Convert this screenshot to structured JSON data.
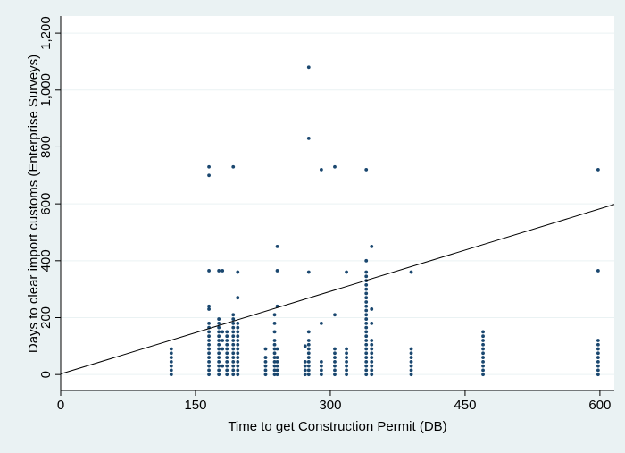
{
  "chart_data": {
    "type": "scatter",
    "xlabel": "Time to get Construction Permit (DB)",
    "ylabel": "Days to clear import customs (Enterprise Surveys)",
    "xlim": [
      0,
      616
    ],
    "ylim": [
      -56,
      1260
    ],
    "xticks": [
      0,
      150,
      300,
      450,
      600
    ],
    "yticks": [
      0,
      200,
      400,
      600,
      800,
      {
        "value": 1000,
        "label": "1,000"
      },
      {
        "value": 1200,
        "label": "1,200"
      }
    ],
    "grid": true,
    "series": [
      {
        "type": "scatter",
        "color": "#1a476f",
        "x": [
          123,
          123,
          123,
          123,
          123,
          123,
          123,
          165,
          165,
          165,
          165,
          165,
          165,
          165,
          165,
          165,
          165,
          165,
          165,
          165,
          165,
          165,
          165,
          165,
          165,
          176,
          176,
          176,
          176,
          176,
          176,
          176,
          176,
          176,
          176,
          176,
          176,
          176,
          176,
          176,
          180,
          180,
          180,
          180,
          180,
          185,
          185,
          185,
          185,
          185,
          185,
          185,
          185,
          185,
          185,
          185,
          192,
          192,
          192,
          192,
          192,
          192,
          192,
          192,
          192,
          192,
          192,
          192,
          192,
          192,
          192,
          192,
          197,
          197,
          197,
          197,
          197,
          197,
          197,
          197,
          197,
          197,
          197,
          197,
          197,
          197,
          197,
          228,
          228,
          228,
          228,
          228,
          228,
          238,
          238,
          238,
          238,
          238,
          238,
          238,
          238,
          238,
          238,
          238,
          238,
          241,
          241,
          241,
          241,
          241,
          241,
          241,
          241,
          241,
          272,
          272,
          272,
          272,
          272,
          276,
          276,
          276,
          276,
          276,
          276,
          276,
          276,
          276,
          276,
          276,
          276,
          276,
          290,
          290,
          290,
          290,
          290,
          290,
          305,
          305,
          305,
          305,
          305,
          305,
          305,
          305,
          305,
          318,
          318,
          318,
          318,
          318,
          318,
          318,
          318,
          340,
          340,
          340,
          340,
          340,
          340,
          340,
          340,
          340,
          340,
          340,
          340,
          340,
          340,
          340,
          340,
          340,
          340,
          340,
          340,
          340,
          340,
          340,
          340,
          340,
          340,
          340,
          346,
          346,
          346,
          346,
          346,
          346,
          346,
          346,
          346,
          346,
          346,
          346,
          390,
          390,
          390,
          390,
          390,
          390,
          390,
          390,
          470,
          470,
          470,
          470,
          470,
          470,
          470,
          470,
          470,
          470,
          470,
          598,
          598,
          598,
          598,
          598,
          598,
          598,
          598,
          598,
          598,
          598
        ],
        "values": [
          0,
          15,
          30,
          45,
          60,
          75,
          90,
          0,
          15,
          30,
          45,
          60,
          75,
          90,
          105,
          120,
          135,
          150,
          165,
          180,
          230,
          240,
          365,
          700,
          730,
          0,
          15,
          30,
          45,
          60,
          75,
          90,
          105,
          120,
          135,
          150,
          165,
          180,
          195,
          365,
          30,
          90,
          120,
          150,
          365,
          0,
          15,
          30,
          45,
          60,
          75,
          90,
          105,
          120,
          135,
          150,
          0,
          15,
          30,
          45,
          60,
          75,
          90,
          105,
          120,
          135,
          150,
          165,
          180,
          195,
          210,
          730,
          0,
          15,
          30,
          45,
          60,
          75,
          90,
          105,
          120,
          135,
          150,
          165,
          180,
          270,
          360,
          0,
          15,
          30,
          45,
          60,
          90,
          0,
          15,
          30,
          45,
          60,
          75,
          90,
          105,
          120,
          150,
          180,
          210,
          0,
          15,
          30,
          45,
          60,
          90,
          240,
          365,
          450,
          0,
          15,
          30,
          45,
          100,
          0,
          15,
          30,
          45,
          60,
          75,
          90,
          105,
          120,
          150,
          360,
          830,
          1080,
          0,
          15,
          30,
          45,
          180,
          720,
          0,
          15,
          30,
          45,
          60,
          75,
          90,
          210,
          730,
          0,
          15,
          30,
          45,
          60,
          75,
          90,
          360,
          0,
          15,
          30,
          45,
          60,
          75,
          90,
          105,
          120,
          135,
          150,
          165,
          180,
          195,
          210,
          225,
          240,
          255,
          270,
          285,
          300,
          315,
          330,
          345,
          360,
          400,
          720,
          0,
          15,
          30,
          45,
          60,
          75,
          90,
          105,
          120,
          180,
          230,
          450,
          0,
          15,
          30,
          45,
          60,
          75,
          90,
          360,
          0,
          15,
          30,
          45,
          60,
          75,
          90,
          105,
          120,
          135,
          150,
          0,
          15,
          30,
          45,
          60,
          75,
          90,
          105,
          120,
          365,
          720
        ]
      },
      {
        "type": "line",
        "color": "#000000",
        "x": [
          0,
          616
        ],
        "values": [
          2,
          598
        ]
      }
    ]
  }
}
